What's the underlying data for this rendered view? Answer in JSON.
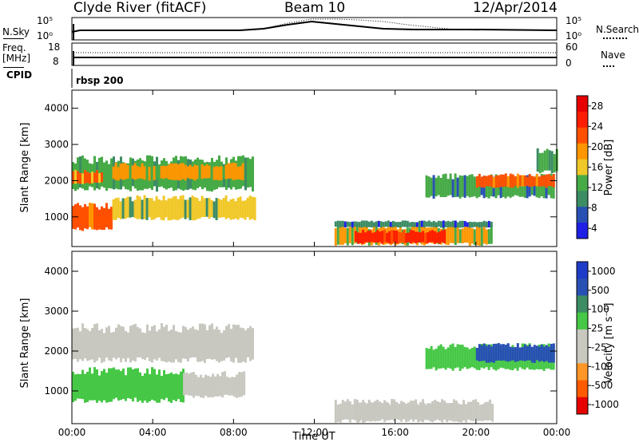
{
  "header": {
    "station": "Clyde River (fitACF)",
    "beam": "Beam 10",
    "date": "12/Apr/2014"
  },
  "panels": {
    "nsky": {
      "left_label": "N.Sky",
      "left_ticks": [
        "10^5",
        "10^0"
      ],
      "right_ticks": [
        "10^5",
        "10^0"
      ],
      "right_label": "N.Search"
    },
    "freq": {
      "left_label_1": "Freq.",
      "left_label_2": "[MHz]",
      "left_ticks": [
        "18",
        "8"
      ],
      "right_ticks": [
        "60",
        "0"
      ],
      "right_label": "Nave"
    },
    "cpid": {
      "left_label": "CPID",
      "program": "rbsp 200"
    }
  },
  "colors": {
    "power": [
      "#1f1fe6",
      "#2850b4",
      "#3c8c64",
      "#46aa46",
      "#f0c828",
      "#ff9600",
      "#ff5000",
      "#ff1e00",
      "#e60000"
    ],
    "velocity": [
      "#e60000",
      "#ff5a00",
      "#ff9628",
      "#c8c8c0",
      "#c8c8c0",
      "#46c846",
      "#3c8c64",
      "#2850b4",
      "#1f3cc8"
    ]
  },
  "chart_data": [
    {
      "type": "heatmap",
      "quantity": "power",
      "title": "",
      "xlabel": "",
      "ylabel": "Slant Range [km]",
      "y_ticks": [
        "4000",
        "3000",
        "2000",
        "1000"
      ],
      "ylim": [
        180,
        4500
      ],
      "colorbar": {
        "label": "Power [dB]",
        "ticks": [
          "28",
          "24",
          "20",
          "16",
          "12",
          "8",
          "4"
        ],
        "range": [
          0,
          32
        ]
      },
      "regions": [
        {
          "t0": 0.0,
          "t1": 2.0,
          "r0": 600,
          "r1": 1400,
          "level": 24
        },
        {
          "t0": 2.0,
          "t1": 9.0,
          "r0": 900,
          "r1": 1600,
          "level": 16
        },
        {
          "t0": 0.0,
          "t1": 9.0,
          "r0": 1700,
          "r1": 2700,
          "level": 14
        },
        {
          "t0": 2.0,
          "t1": 8.5,
          "r0": 2000,
          "r1": 2500,
          "level": 20
        },
        {
          "t0": 0.0,
          "t1": 1.5,
          "r0": 1900,
          "r1": 2300,
          "level": 22
        },
        {
          "t0": 13.0,
          "t1": 20.8,
          "r0": 200,
          "r1": 800,
          "level": 20
        },
        {
          "t0": 14.0,
          "t1": 18.5,
          "r0": 250,
          "r1": 650,
          "level": 28
        },
        {
          "t0": 13.0,
          "t1": 20.8,
          "r0": 700,
          "r1": 900,
          "level": 8
        },
        {
          "t0": 17.5,
          "t1": 23.8,
          "r0": 1500,
          "r1": 2200,
          "level": 12
        },
        {
          "t0": 20.0,
          "t1": 23.8,
          "r0": 1800,
          "r1": 2200,
          "level": 24
        },
        {
          "t0": 23.0,
          "t1": 24.0,
          "r0": 2200,
          "r1": 2900,
          "level": 14
        }
      ]
    },
    {
      "type": "heatmap",
      "quantity": "velocity",
      "title": "",
      "xlabel": "Time UT",
      "ylabel": "Slant Range [km]",
      "x_ticks": [
        "00:00",
        "04:00",
        "08:00",
        "12:00",
        "16:00",
        "20:00",
        "00:00"
      ],
      "y_ticks": [
        "4000",
        "3000",
        "2000",
        "1000"
      ],
      "xlim": [
        0,
        24
      ],
      "ylim": [
        180,
        4500
      ],
      "colorbar": {
        "label": "Velocity [m s^-1]",
        "ticks": [
          "1000",
          "500",
          "100",
          "25",
          "-25",
          "-100",
          "-500",
          "-1000"
        ],
        "range": [
          -1200,
          1200
        ]
      },
      "regions": [
        {
          "t0": 0.0,
          "t1": 9.0,
          "r0": 1700,
          "r1": 2700,
          "level": 0
        },
        {
          "t0": 0.0,
          "t1": 5.5,
          "r0": 700,
          "r1": 1600,
          "level": 300
        },
        {
          "t0": 5.5,
          "t1": 8.5,
          "r0": 800,
          "r1": 1500,
          "level": -300
        },
        {
          "t0": 13.0,
          "t1": 15.0,
          "r0": 200,
          "r1": 800,
          "level": -200
        },
        {
          "t0": 14.0,
          "t1": 20.8,
          "r0": 200,
          "r1": 800,
          "level": 60
        },
        {
          "t0": 15.0,
          "t1": 19.0,
          "r0": 300,
          "r1": 700,
          "level": 0
        },
        {
          "t0": 17.5,
          "t1": 23.8,
          "r0": 1500,
          "r1": 2200,
          "level": 300
        },
        {
          "t0": 20.0,
          "t1": 23.8,
          "r0": 1700,
          "r1": 2200,
          "level": 900
        }
      ]
    }
  ]
}
